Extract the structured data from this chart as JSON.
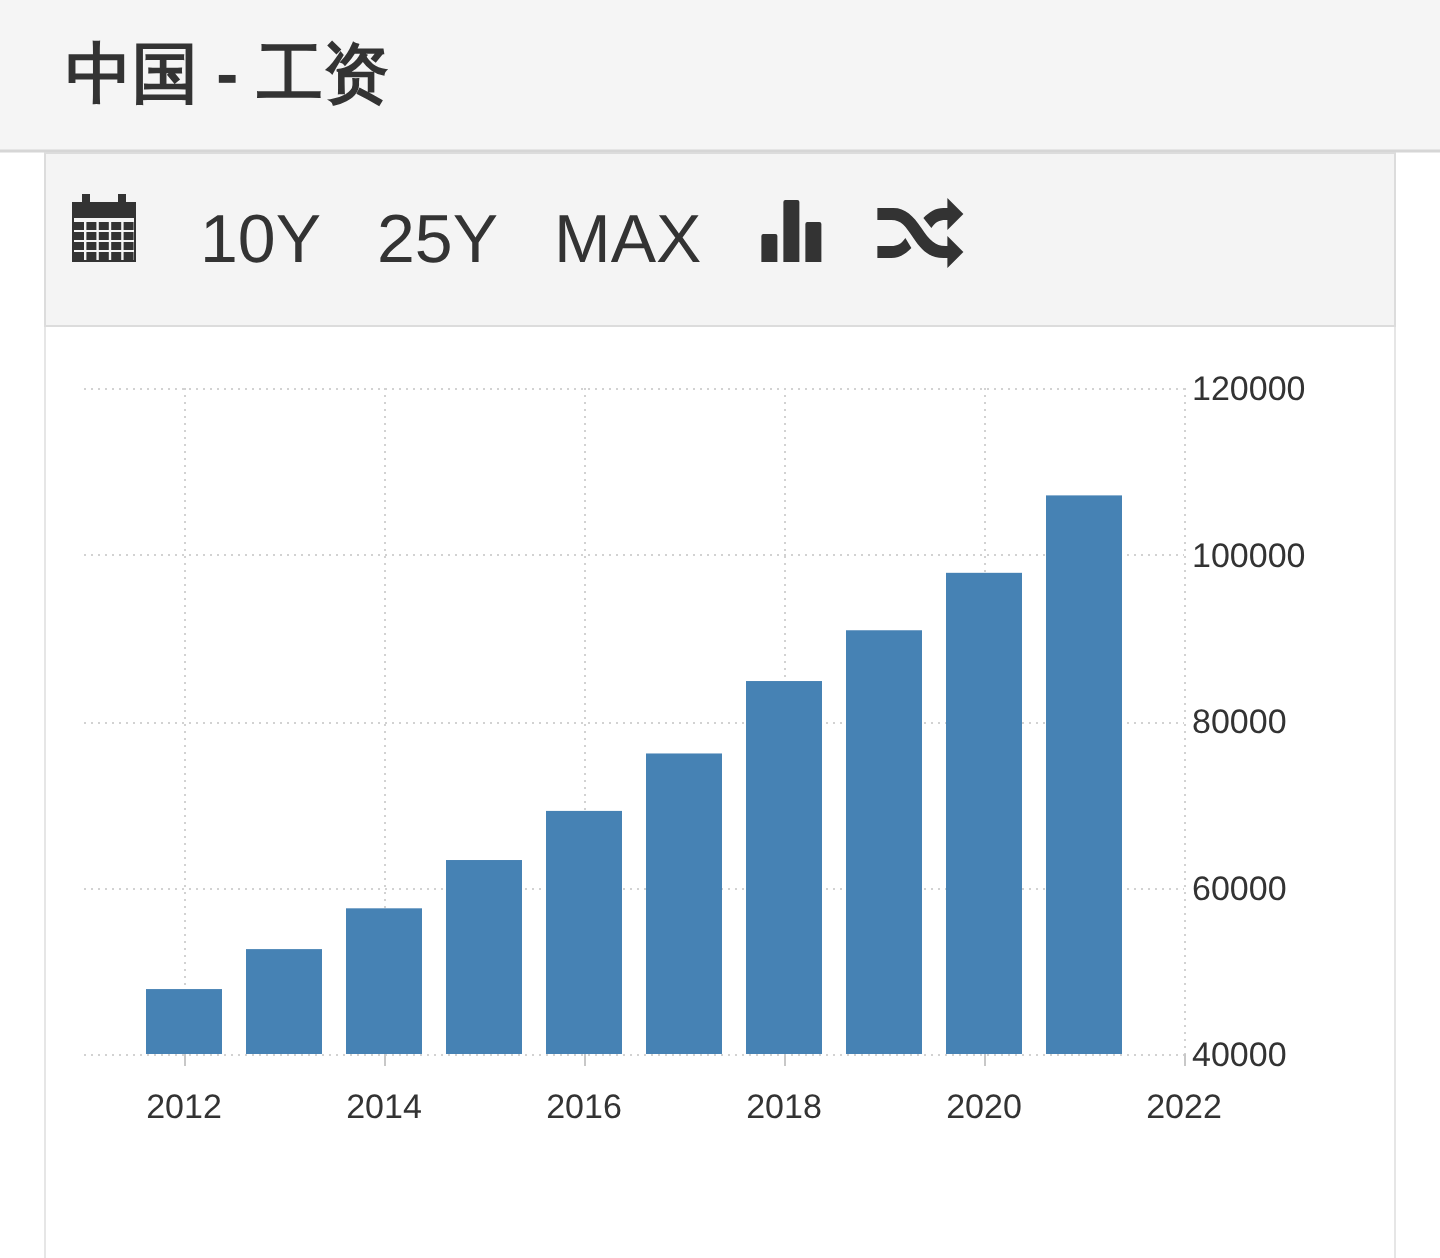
{
  "chart_data": {
    "type": "bar",
    "title": "中国 - 工资",
    "annotations": [
      "10Y",
      "25Y",
      "MAX"
    ],
    "x": [
      2012,
      2013,
      2014,
      2015,
      2016,
      2017,
      2018,
      2019,
      2020,
      2021
    ],
    "values": [
      47800,
      52600,
      57500,
      63300,
      69200,
      76100,
      84800,
      90900,
      97800,
      107100
    ],
    "color": "#4682b4",
    "xlim": [
      2011,
      2022
    ],
    "xticks": [
      2012,
      2014,
      2016,
      2018,
      2020,
      2022
    ],
    "ylim": [
      40000,
      120000
    ],
    "yticks": [
      40000,
      60000,
      80000,
      100000,
      120000
    ],
    "grid": true
  }
}
